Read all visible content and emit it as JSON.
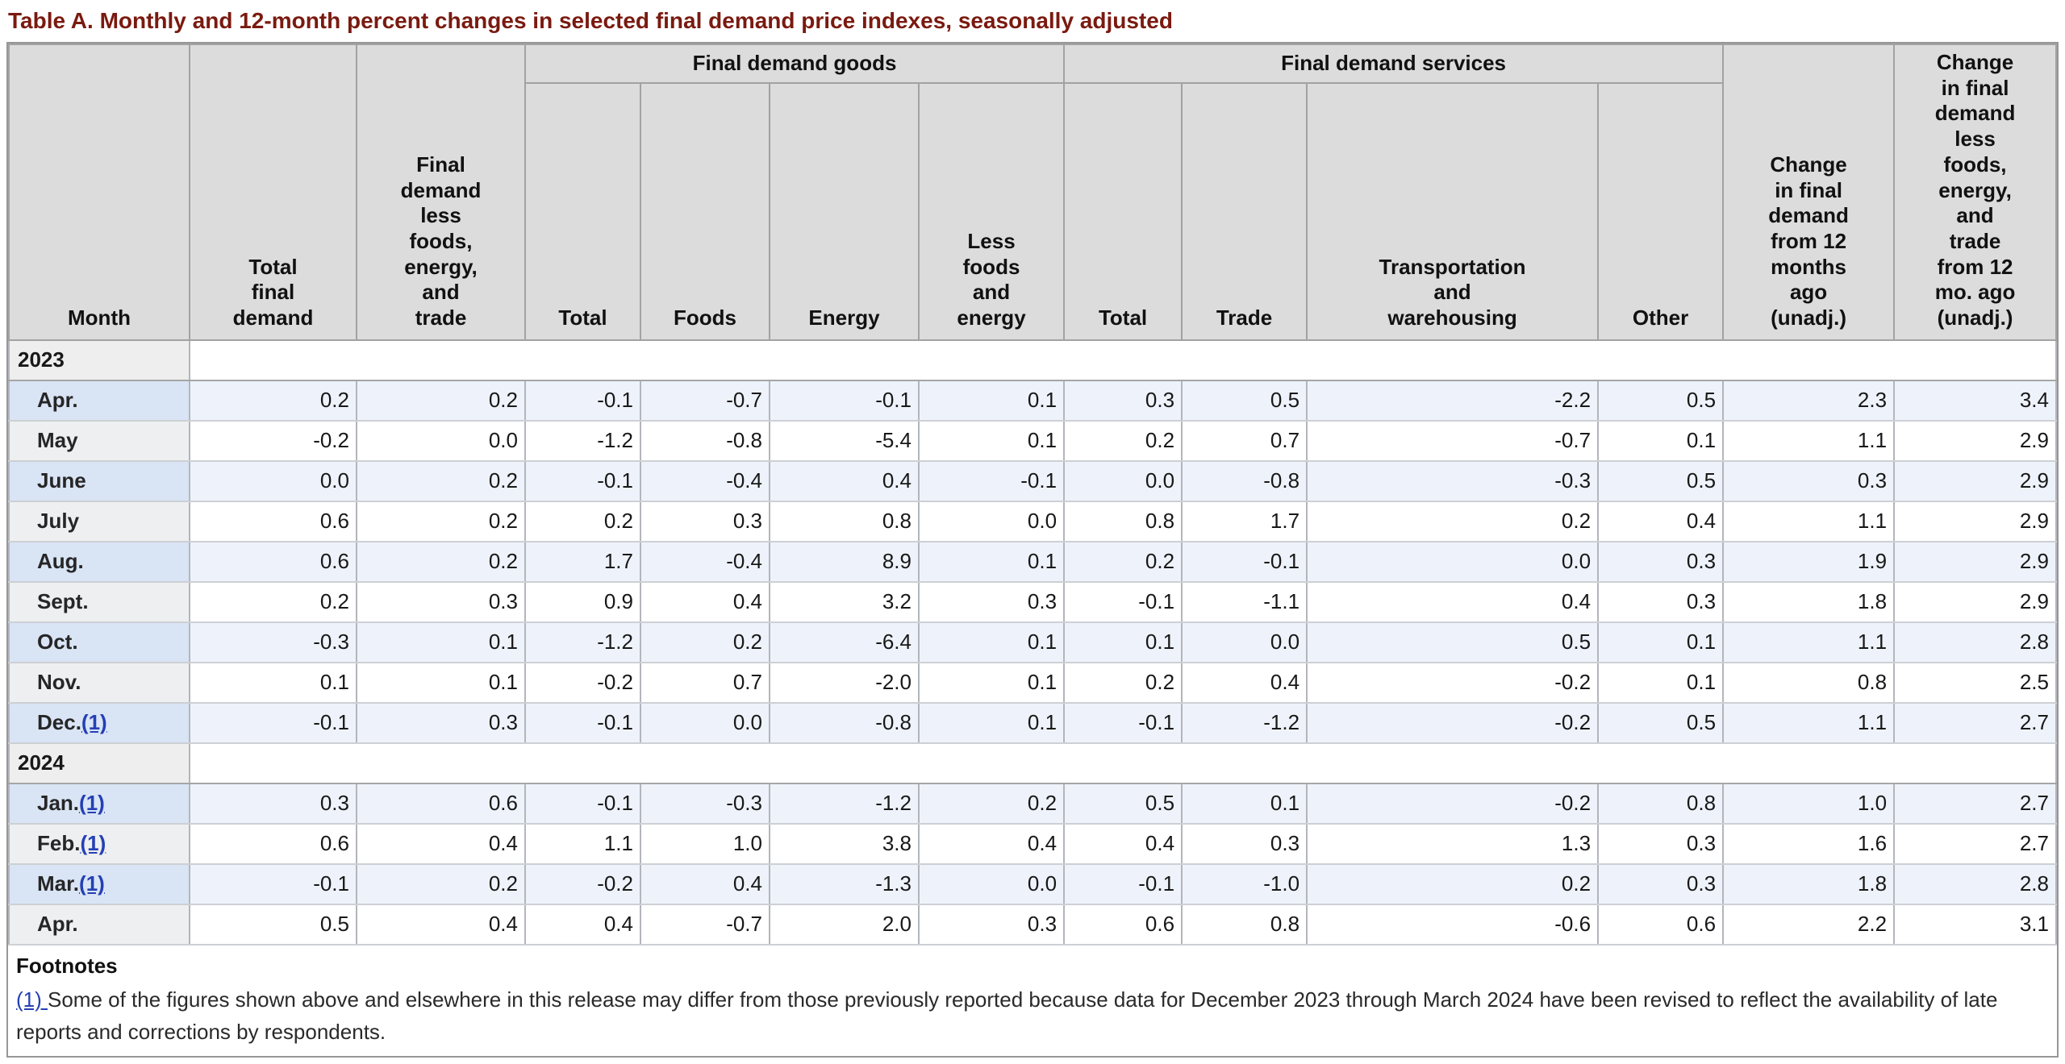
{
  "title": "Table A. Monthly and 12-month percent changes in selected final demand price indexes, seasonally adjusted",
  "table": {
    "headers": {
      "month": "Month",
      "total_final_demand": "Total\nfinal\ndemand",
      "fd_less_foods_energy_trade": "Final\ndemand\nless\nfoods,\nenergy,\nand\ntrade",
      "goods_group": "Final demand goods",
      "services_group": "Final demand services",
      "goods_sub": [
        "Total",
        "Foods",
        "Energy",
        "Less\nfoods\nand\nenergy"
      ],
      "services_sub": [
        "Total",
        "Trade",
        "Transportation\nand\nwarehousing",
        "Other"
      ],
      "change_12mo": "Change\nin final\ndemand\nfrom 12\nmonths\nago\n(unadj.)",
      "change_12mo_less": "Change\nin final\ndemand\nless\nfoods,\nenergy,\nand\ntrade\nfrom 12\nmo. ago\n(unadj.)"
    },
    "sections": [
      {
        "year": "2023",
        "rows": [
          {
            "month": "Apr.",
            "footnote_ref": "",
            "values": [
              "0.2",
              "0.2",
              "-0.1",
              "-0.7",
              "-0.1",
              "0.1",
              "0.3",
              "0.5",
              "-2.2",
              "0.5",
              "2.3",
              "3.4"
            ]
          },
          {
            "month": "May",
            "footnote_ref": "",
            "values": [
              "-0.2",
              "0.0",
              "-1.2",
              "-0.8",
              "-5.4",
              "0.1",
              "0.2",
              "0.7",
              "-0.7",
              "0.1",
              "1.1",
              "2.9"
            ]
          },
          {
            "month": "June",
            "footnote_ref": "",
            "values": [
              "0.0",
              "0.2",
              "-0.1",
              "-0.4",
              "0.4",
              "-0.1",
              "0.0",
              "-0.8",
              "-0.3",
              "0.5",
              "0.3",
              "2.9"
            ]
          },
          {
            "month": "July",
            "footnote_ref": "",
            "values": [
              "0.6",
              "0.2",
              "0.2",
              "0.3",
              "0.8",
              "0.0",
              "0.8",
              "1.7",
              "0.2",
              "0.4",
              "1.1",
              "2.9"
            ]
          },
          {
            "month": "Aug.",
            "footnote_ref": "",
            "values": [
              "0.6",
              "0.2",
              "1.7",
              "-0.4",
              "8.9",
              "0.1",
              "0.2",
              "-0.1",
              "0.0",
              "0.3",
              "1.9",
              "2.9"
            ]
          },
          {
            "month": "Sept.",
            "footnote_ref": "",
            "values": [
              "0.2",
              "0.3",
              "0.9",
              "0.4",
              "3.2",
              "0.3",
              "-0.1",
              "-1.1",
              "0.4",
              "0.3",
              "1.8",
              "2.9"
            ]
          },
          {
            "month": "Oct.",
            "footnote_ref": "",
            "values": [
              "-0.3",
              "0.1",
              "-1.2",
              "0.2",
              "-6.4",
              "0.1",
              "0.1",
              "0.0",
              "0.5",
              "0.1",
              "1.1",
              "2.8"
            ]
          },
          {
            "month": "Nov.",
            "footnote_ref": "",
            "values": [
              "0.1",
              "0.1",
              "-0.2",
              "0.7",
              "-2.0",
              "0.1",
              "0.2",
              "0.4",
              "-0.2",
              "0.1",
              "0.8",
              "2.5"
            ]
          },
          {
            "month": "Dec.",
            "footnote_ref": "(1)",
            "values": [
              "-0.1",
              "0.3",
              "-0.1",
              "0.0",
              "-0.8",
              "0.1",
              "-0.1",
              "-1.2",
              "-0.2",
              "0.5",
              "1.1",
              "2.7"
            ]
          }
        ]
      },
      {
        "year": "2024",
        "rows": [
          {
            "month": "Jan.",
            "footnote_ref": "(1)",
            "values": [
              "0.3",
              "0.6",
              "-0.1",
              "-0.3",
              "-1.2",
              "0.2",
              "0.5",
              "0.1",
              "-0.2",
              "0.8",
              "1.0",
              "2.7"
            ]
          },
          {
            "month": "Feb.",
            "footnote_ref": "(1)",
            "values": [
              "0.6",
              "0.4",
              "1.1",
              "1.0",
              "3.8",
              "0.4",
              "0.4",
              "0.3",
              "1.3",
              "0.3",
              "1.6",
              "2.7"
            ]
          },
          {
            "month": "Mar.",
            "footnote_ref": "(1)",
            "values": [
              "-0.1",
              "0.2",
              "-0.2",
              "0.4",
              "-1.3",
              "0.0",
              "-0.1",
              "-1.0",
              "0.2",
              "0.3",
              "1.8",
              "2.8"
            ]
          },
          {
            "month": "Apr.",
            "footnote_ref": "",
            "values": [
              "0.5",
              "0.4",
              "0.4",
              "-0.7",
              "2.0",
              "0.3",
              "0.6",
              "0.8",
              "-0.6",
              "0.6",
              "2.2",
              "3.1"
            ]
          }
        ]
      }
    ]
  },
  "footnotes": {
    "heading": "Footnotes",
    "items": [
      {
        "marker": "(1) ",
        "text": "Some of the figures shown above and elsewhere in this release may differ from those previously reported because data for December 2023 through March 2024 have been revised to reflect the availability of late reports and corrections by respondents."
      }
    ]
  }
}
